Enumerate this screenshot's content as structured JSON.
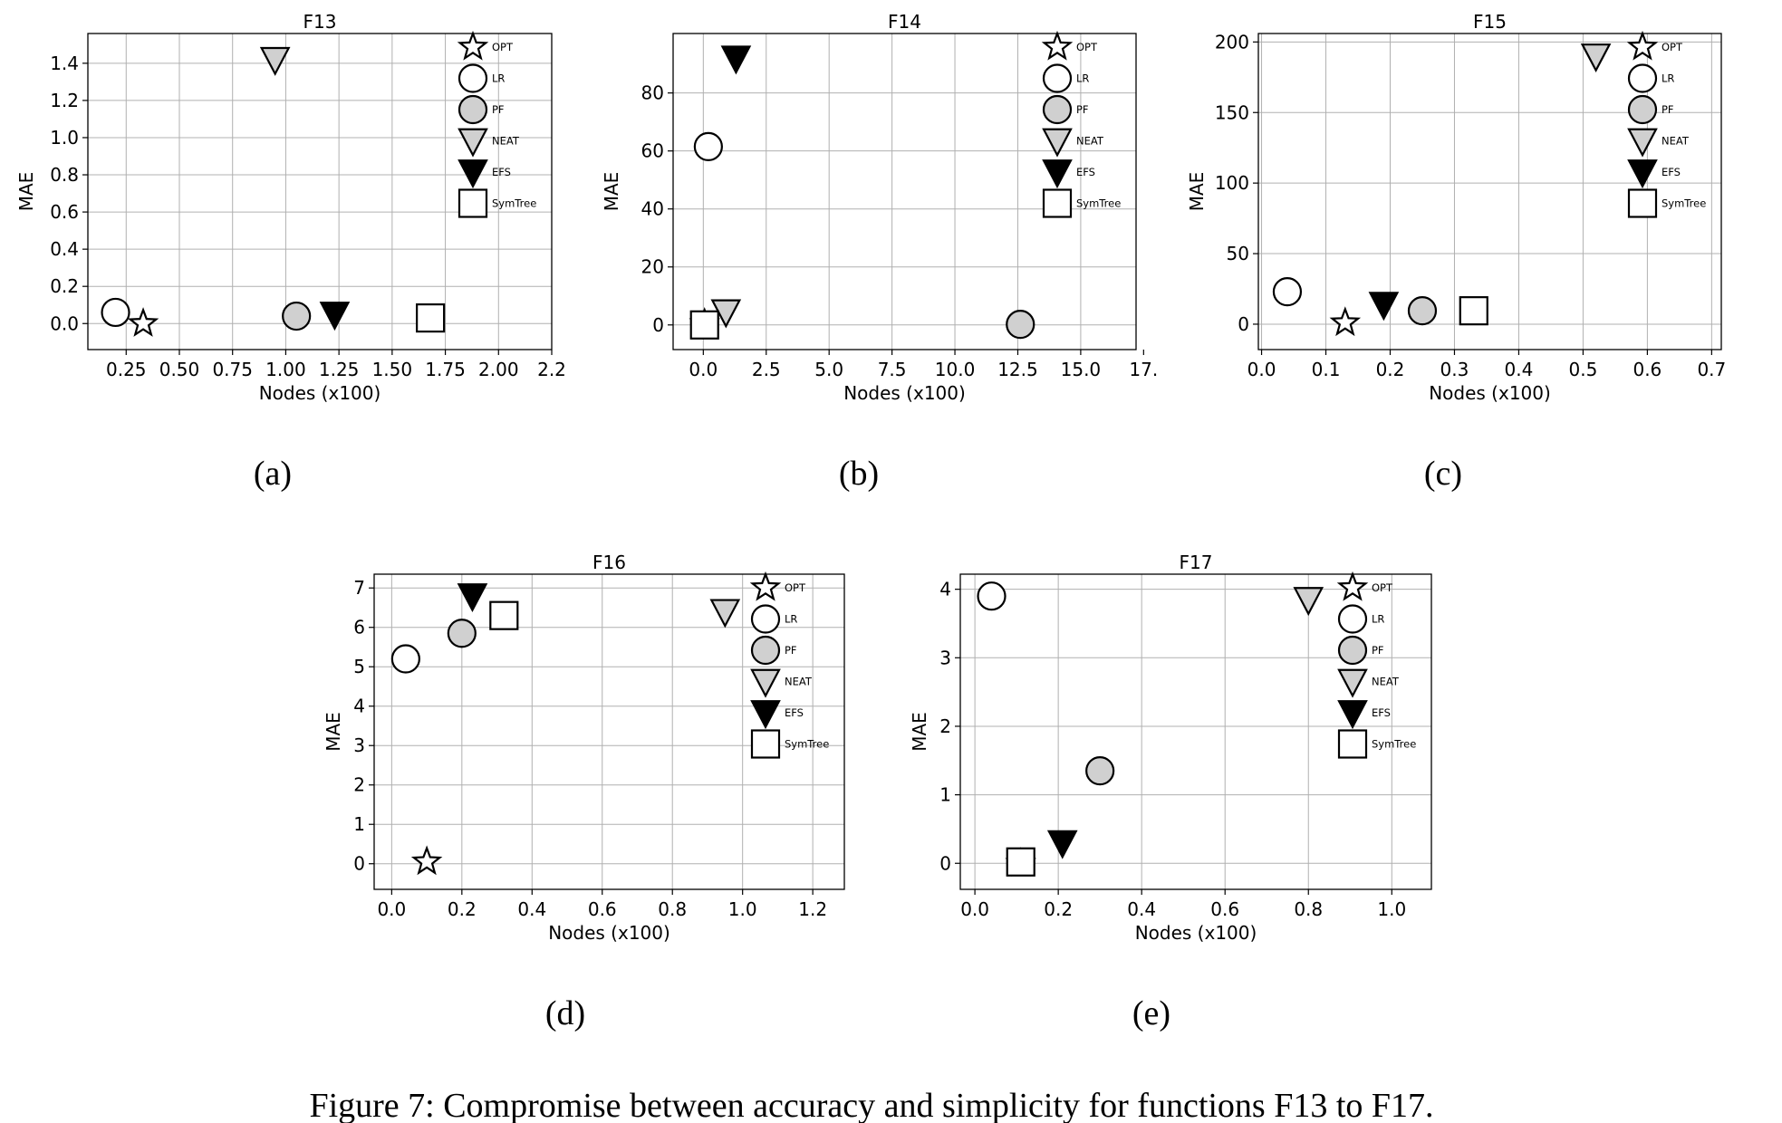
{
  "figure": {
    "caption": "Figure 7: Compromise between accuracy and simplicity for functions F13 to F17."
  },
  "legend_entries": [
    {
      "label": "OPT",
      "marker": "star-icon",
      "fill": "#ffffff"
    },
    {
      "label": "LR",
      "marker": "circle-icon",
      "fill": "#ffffff"
    },
    {
      "label": "PF",
      "marker": "circle-icon",
      "fill": "#d0d0d0"
    },
    {
      "label": "NEAT",
      "marker": "triangle-down-icon",
      "fill": "#d0d0d0"
    },
    {
      "label": "EFS",
      "marker": "triangle-down-icon",
      "fill": "#000000"
    },
    {
      "label": "SymTree",
      "marker": "square-icon",
      "fill": "#ffffff"
    }
  ],
  "colors": {
    "light_gray": "#d0d0d0",
    "black": "#000000",
    "white": "#ffffff",
    "grid": "#b0b0b0"
  },
  "chart_data": [
    {
      "type": "scatter",
      "panel_label": "(a)",
      "title": "F13",
      "xlabel": "Nodes (x100)",
      "ylabel": "MAE",
      "xlim": [
        0.07,
        2.25
      ],
      "ylim": [
        -0.14,
        1.56
      ],
      "xticks": [
        0.25,
        0.5,
        0.75,
        1.0,
        1.25,
        1.5,
        1.75,
        2.0,
        2.25
      ],
      "xtick_labels": [
        "0.25",
        "0.50",
        "0.75",
        "1.00",
        "1.25",
        "1.50",
        "1.75",
        "2.00",
        "2.2"
      ],
      "yticks": [
        0.0,
        0.2,
        0.4,
        0.6,
        0.8,
        1.0,
        1.2,
        1.4
      ],
      "ytick_labels": [
        "0.0",
        "0.2",
        "0.4",
        "0.6",
        "0.8",
        "1.0",
        "1.2",
        "1.4"
      ],
      "grid": true,
      "legend_position": "top-right",
      "points": [
        {
          "series": "OPT",
          "x": 0.33,
          "y": 0.0
        },
        {
          "series": "LR",
          "x": 0.2,
          "y": 0.06
        },
        {
          "series": "PF",
          "x": 1.05,
          "y": 0.04
        },
        {
          "series": "NEAT",
          "x": 0.95,
          "y": 1.42
        },
        {
          "series": "EFS",
          "x": 1.23,
          "y": 0.05
        },
        {
          "series": "SymTree",
          "x": 1.68,
          "y": 0.03
        }
      ]
    },
    {
      "type": "scatter",
      "panel_label": "(b)",
      "title": "F14",
      "xlabel": "Nodes (x100)",
      "ylabel": "MAE",
      "xlim": [
        -1.2,
        17.2
      ],
      "ylim": [
        -8.5,
        100.5
      ],
      "xticks": [
        0,
        2.5,
        5,
        7.5,
        10,
        12.5,
        15,
        17.5
      ],
      "xtick_labels": [
        "0.0",
        "2.5",
        "5.0",
        "7.5",
        "10.0",
        "12.5",
        "15.0",
        "17."
      ],
      "yticks": [
        0,
        20,
        40,
        60,
        80
      ],
      "ytick_labels": [
        "0",
        "20",
        "40",
        "60",
        "80"
      ],
      "grid": true,
      "legend_position": "top-right",
      "points": [
        {
          "series": "OPT",
          "x": 0.05,
          "y": 0.5
        },
        {
          "series": "LR",
          "x": 0.2,
          "y": 61.5
        },
        {
          "series": "PF",
          "x": 12.6,
          "y": 0.2
        },
        {
          "series": "NEAT",
          "x": 0.9,
          "y": 4.5
        },
        {
          "series": "EFS",
          "x": 1.3,
          "y": 92.0
        },
        {
          "series": "SymTree",
          "x": 0.05,
          "y": 0.0
        }
      ]
    },
    {
      "type": "scatter",
      "panel_label": "(c)",
      "title": "F15",
      "xlabel": "Nodes (x100)",
      "ylabel": "MAE",
      "xlim": [
        -0.005,
        0.715
      ],
      "ylim": [
        -18,
        206
      ],
      "xticks": [
        0.0,
        0.1,
        0.2,
        0.3,
        0.4,
        0.5,
        0.6,
        0.7
      ],
      "xtick_labels": [
        "0.0",
        "0.1",
        "0.2",
        "0.3",
        "0.4",
        "0.5",
        "0.6",
        "0.7"
      ],
      "yticks": [
        0,
        50,
        100,
        150,
        200
      ],
      "ytick_labels": [
        "0",
        "50",
        "100",
        "150",
        "200"
      ],
      "grid": true,
      "legend_position": "top-right",
      "points": [
        {
          "series": "OPT",
          "x": 0.13,
          "y": 1.0
        },
        {
          "series": "LR",
          "x": 0.04,
          "y": 23.0
        },
        {
          "series": "PF",
          "x": 0.25,
          "y": 9.5
        },
        {
          "series": "NEAT",
          "x": 0.52,
          "y": 190.0
        },
        {
          "series": "EFS",
          "x": 0.19,
          "y": 14.0
        },
        {
          "series": "SymTree",
          "x": 0.33,
          "y": 9.5
        }
      ]
    },
    {
      "type": "scatter",
      "panel_label": "(d)",
      "title": "F16",
      "xlabel": "Nodes (x100)",
      "ylabel": "MAE",
      "xlim": [
        -0.05,
        1.29
      ],
      "ylim": [
        -0.65,
        7.35
      ],
      "xticks": [
        0.0,
        0.2,
        0.4,
        0.6,
        0.8,
        1.0,
        1.2
      ],
      "xtick_labels": [
        "0.0",
        "0.2",
        "0.4",
        "0.6",
        "0.8",
        "1.0",
        "1.2"
      ],
      "yticks": [
        0,
        1,
        2,
        3,
        4,
        5,
        6,
        7
      ],
      "ytick_labels": [
        "0",
        "1",
        "2",
        "3",
        "4",
        "5",
        "6",
        "7"
      ],
      "grid": true,
      "legend_position": "top-right",
      "points": [
        {
          "series": "OPT",
          "x": 0.1,
          "y": 0.05
        },
        {
          "series": "LR",
          "x": 0.04,
          "y": 5.2
        },
        {
          "series": "PF",
          "x": 0.2,
          "y": 5.85
        },
        {
          "series": "NEAT",
          "x": 0.95,
          "y": 6.4
        },
        {
          "series": "EFS",
          "x": 0.23,
          "y": 6.8
        },
        {
          "series": "SymTree",
          "x": 0.32,
          "y": 6.3
        }
      ]
    },
    {
      "type": "scatter",
      "panel_label": "(e)",
      "title": "F17",
      "xlabel": "Nodes (x100)",
      "ylabel": "MAE",
      "xlim": [
        -0.035,
        1.095
      ],
      "ylim": [
        -0.38,
        4.22
      ],
      "xticks": [
        0.0,
        0.2,
        0.4,
        0.6,
        0.8,
        1.0
      ],
      "xtick_labels": [
        "0.0",
        "0.2",
        "0.4",
        "0.6",
        "0.8",
        "1.0"
      ],
      "yticks": [
        0,
        1,
        2,
        3,
        4
      ],
      "ytick_labels": [
        "0",
        "1",
        "2",
        "3",
        "4"
      ],
      "grid": true,
      "legend_position": "top-right",
      "points": [
        {
          "series": "OPT",
          "x": 0.11,
          "y": 0.0
        },
        {
          "series": "LR",
          "x": 0.04,
          "y": 3.9
        },
        {
          "series": "PF",
          "x": 0.3,
          "y": 1.35
        },
        {
          "series": "NEAT",
          "x": 0.8,
          "y": 3.85
        },
        {
          "series": "EFS",
          "x": 0.21,
          "y": 0.3
        },
        {
          "series": "SymTree",
          "x": 0.11,
          "y": 0.02
        }
      ]
    }
  ]
}
